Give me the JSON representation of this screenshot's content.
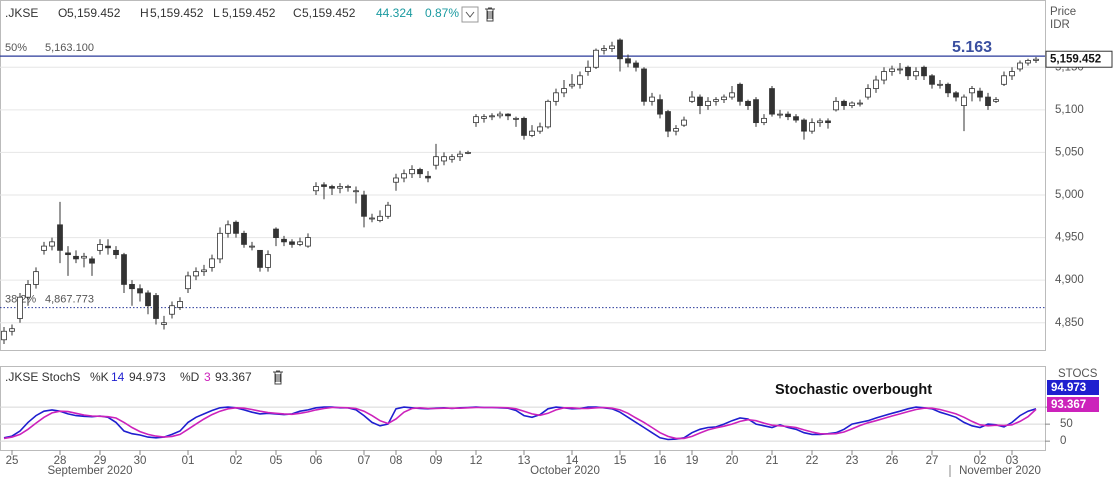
{
  "chart_data": [
    {
      "type": "candlestick",
      "symbol": ".JKSE",
      "header": [
        {
          "label": "O",
          "value": "5,159.452"
        },
        {
          "label": "H",
          "value": "5,159.452"
        },
        {
          "label": "L",
          "value": "5,159.452"
        },
        {
          "label": "C",
          "value": "5,159.452"
        }
      ],
      "change": "44.324",
      "change_pct": "0.87%",
      "axis_label": [
        "Price",
        "IDR"
      ],
      "last_price_label": "5,159.452",
      "annotation": "5.163",
      "levels": [
        {
          "label": "50%",
          "value": 5163.1,
          "value_label": "5,163.100",
          "style": "solid",
          "color": "#2a3a9a"
        },
        {
          "label": "38.2%",
          "value": 4867.773,
          "value_label": "4,867.773",
          "style": "dotted",
          "color": "#2a3a9a"
        }
      ],
      "xlim": [
        -0.5,
        129.5
      ],
      "ylim": [
        4818,
        5229
      ],
      "yticks": [
        {
          "value": 4850,
          "label": "4,850"
        },
        {
          "value": 4900,
          "label": "4,900"
        },
        {
          "value": 4950,
          "label": "4,950"
        },
        {
          "value": 5000,
          "label": "5,000"
        },
        {
          "value": 5050,
          "label": "5,050"
        },
        {
          "value": 5100,
          "label": "5,100"
        },
        {
          "value": 5150,
          "label": "5,150"
        }
      ],
      "up_color": "#ffffff",
      "down_color": "#333333",
      "ohlc": [
        [
          4830,
          4845,
          4825,
          4840
        ],
        [
          4840,
          4848,
          4835,
          4843
        ],
        [
          4855,
          4885,
          4850,
          4880
        ],
        [
          4880,
          4900,
          4870,
          4895
        ],
        [
          4895,
          4915,
          4890,
          4910
        ],
        [
          4935,
          4945,
          4930,
          4940
        ],
        [
          4940,
          4950,
          4935,
          4945
        ],
        [
          4965,
          4992,
          4920,
          4935
        ],
        [
          4932,
          4940,
          4905,
          4930
        ],
        [
          4928,
          4935,
          4920,
          4925
        ],
        [
          4926,
          4932,
          4915,
          4928
        ],
        [
          4925,
          4928,
          4905,
          4920
        ],
        [
          4935,
          4948,
          4930,
          4942
        ],
        [
          4940,
          4948,
          4930,
          4938
        ],
        [
          4935,
          4940,
          4925,
          4930
        ],
        [
          4930,
          4932,
          4885,
          4895
        ],
        [
          4895,
          4900,
          4870,
          4890
        ],
        [
          4890,
          4895,
          4875,
          4885
        ],
        [
          4885,
          4888,
          4860,
          4870
        ],
        [
          4882,
          4885,
          4848,
          4855
        ],
        [
          4848,
          4858,
          4842,
          4850
        ],
        [
          4860,
          4875,
          4855,
          4870
        ],
        [
          4868,
          4880,
          4865,
          4875
        ],
        [
          4890,
          4910,
          4885,
          4905
        ],
        [
          4905,
          4915,
          4900,
          4910
        ],
        [
          4910,
          4918,
          4905,
          4912
        ],
        [
          4915,
          4930,
          4910,
          4925
        ],
        [
          4925,
          4962,
          4920,
          4955
        ],
        [
          4955,
          4970,
          4950,
          4965
        ],
        [
          4968,
          4970,
          4950,
          4955
        ],
        [
          4955,
          4958,
          4938,
          4942
        ],
        [
          4940,
          4945,
          4935,
          4940
        ],
        [
          4935,
          4935,
          4910,
          4915
        ],
        [
          4915,
          4935,
          4910,
          4930
        ],
        [
          4960,
          4962,
          4940,
          4950
        ],
        [
          4948,
          4952,
          4940,
          4945
        ],
        [
          4945,
          4948,
          4938,
          4942
        ],
        [
          4942,
          4950,
          4940,
          4945
        ],
        [
          4940,
          4955,
          4938,
          4950
        ],
        [
          5005,
          5015,
          5000,
          5010
        ],
        [
          5012,
          5015,
          4995,
          5010
        ],
        [
          5010,
          5012,
          5000,
          5008
        ],
        [
          5008,
          5014,
          5002,
          5010
        ],
        [
          5010,
          5012,
          5004,
          5010
        ],
        [
          5005,
          5010,
          4990,
          5005
        ],
        [
          5000,
          5005,
          4962,
          4975
        ],
        [
          4973,
          4978,
          4968,
          4973
        ],
        [
          4970,
          4982,
          4968,
          4975
        ],
        [
          4975,
          4992,
          4972,
          4988
        ],
        [
          5015,
          5025,
          5005,
          5020
        ],
        [
          5020,
          5030,
          5015,
          5025
        ],
        [
          5025,
          5035,
          5020,
          5030
        ],
        [
          5030,
          5032,
          5020,
          5025
        ],
        [
          5022,
          5028,
          5015,
          5020
        ],
        [
          5035,
          5060,
          5030,
          5045
        ],
        [
          5040,
          5050,
          5035,
          5045
        ],
        [
          5042,
          5048,
          5038,
          5045
        ],
        [
          5045,
          5052,
          5040,
          5048
        ],
        [
          5050,
          5052,
          5048,
          5050
        ],
        [
          5085,
          5095,
          5080,
          5092
        ],
        [
          5090,
          5095,
          5085,
          5092
        ],
        [
          5092,
          5096,
          5088,
          5093
        ],
        [
          5093,
          5098,
          5090,
          5095
        ],
        [
          5095,
          5096,
          5088,
          5093
        ],
        [
          5090,
          5092,
          5080,
          5090
        ],
        [
          5090,
          5092,
          5065,
          5070
        ],
        [
          5070,
          5082,
          5068,
          5075
        ],
        [
          5075,
          5085,
          5072,
          5080
        ],
        [
          5080,
          5112,
          5078,
          5110
        ],
        [
          5110,
          5125,
          5105,
          5120
        ],
        [
          5120,
          5135,
          5115,
          5125
        ],
        [
          5128,
          5142,
          5125,
          5130
        ],
        [
          5130,
          5145,
          5125,
          5140
        ],
        [
          5145,
          5158,
          5140,
          5150
        ],
        [
          5150,
          5172,
          5148,
          5170
        ],
        [
          5170,
          5176,
          5165,
          5172
        ],
        [
          5172,
          5180,
          5168,
          5175
        ],
        [
          5182,
          5184,
          5145,
          5160
        ],
        [
          5160,
          5165,
          5150,
          5155
        ],
        [
          5155,
          5158,
          5145,
          5150
        ],
        [
          5148,
          5150,
          5105,
          5110
        ],
        [
          5110,
          5120,
          5105,
          5115
        ],
        [
          5112,
          5118,
          5090,
          5095
        ],
        [
          5098,
          5100,
          5068,
          5075
        ],
        [
          5075,
          5082,
          5070,
          5078
        ],
        [
          5082,
          5092,
          5080,
          5088
        ],
        [
          5110,
          5122,
          5108,
          5115
        ],
        [
          5115,
          5118,
          5095,
          5105
        ],
        [
          5105,
          5115,
          5100,
          5110
        ],
        [
          5110,
          5115,
          5105,
          5112
        ],
        [
          5112,
          5118,
          5108,
          5115
        ],
        [
          5115,
          5128,
          5112,
          5120
        ],
        [
          5130,
          5132,
          5105,
          5110
        ],
        [
          5110,
          5112,
          5100,
          5105
        ],
        [
          5112,
          5115,
          5080,
          5085
        ],
        [
          5085,
          5095,
          5082,
          5090
        ],
        [
          5125,
          5128,
          5092,
          5095
        ],
        [
          5095,
          5100,
          5090,
          5095
        ],
        [
          5095,
          5098,
          5088,
          5092
        ],
        [
          5092,
          5095,
          5085,
          5088
        ],
        [
          5088,
          5090,
          5065,
          5075
        ],
        [
          5075,
          5090,
          5072,
          5085
        ],
        [
          5085,
          5090,
          5080,
          5087
        ],
        [
          5087,
          5090,
          5078,
          5085
        ],
        [
          5100,
          5115,
          5098,
          5110
        ],
        [
          5110,
          5112,
          5100,
          5105
        ],
        [
          5105,
          5110,
          5102,
          5108
        ],
        [
          5108,
          5112,
          5104,
          5108
        ],
        [
          5115,
          5130,
          5112,
          5125
        ],
        [
          5125,
          5140,
          5120,
          5135
        ],
        [
          5135,
          5150,
          5130,
          5145
        ],
        [
          5145,
          5152,
          5140,
          5148
        ],
        [
          5148,
          5155,
          5142,
          5148
        ],
        [
          5150,
          5152,
          5135,
          5140
        ],
        [
          5140,
          5150,
          5135,
          5145
        ],
        [
          5150,
          5152,
          5135,
          5140
        ],
        [
          5140,
          5142,
          5125,
          5130
        ],
        [
          5130,
          5135,
          5125,
          5130
        ],
        [
          5130,
          5132,
          5115,
          5120
        ],
        [
          5120,
          5122,
          5110,
          5115
        ],
        [
          5105,
          5118,
          5075,
          5115
        ],
        [
          5120,
          5128,
          5110,
          5125
        ],
        [
          5122,
          5126,
          5110,
          5115
        ],
        [
          5115,
          5120,
          5100,
          5105
        ],
        [
          5110,
          5115,
          5108,
          5112
        ],
        [
          5130,
          5145,
          5128,
          5140
        ],
        [
          5140,
          5150,
          5135,
          5145
        ],
        [
          5148,
          5158,
          5145,
          5155
        ],
        [
          5155,
          5160,
          5152,
          5158
        ],
        [
          5158,
          5162,
          5155,
          5159.452
        ]
      ]
    },
    {
      "type": "line",
      "title": ".JKSE StochS",
      "axis_title": "STOCS",
      "annotation": "Stochastic overbought",
      "xlim": [
        -0.5,
        129.5
      ],
      "ylim": [
        -26,
        218
      ],
      "yticks": [
        0,
        50,
        100
      ],
      "xticks": [
        {
          "value": 1,
          "label": "25"
        },
        {
          "value": 7,
          "label": "28"
        },
        {
          "value": 12,
          "label": "29"
        },
        {
          "value": 17,
          "label": "30"
        },
        {
          "value": 23,
          "label": "01"
        },
        {
          "value": 29,
          "label": "02"
        },
        {
          "value": 34,
          "label": "05"
        },
        {
          "value": 39,
          "label": "06"
        },
        {
          "value": 45,
          "label": "07"
        },
        {
          "value": 49,
          "label": "08"
        },
        {
          "value": 54,
          "label": "09"
        },
        {
          "value": 59,
          "label": "12"
        },
        {
          "value": 65,
          "label": "13"
        },
        {
          "value": 71,
          "label": "14"
        },
        {
          "value": 77,
          "label": "15"
        },
        {
          "value": 82,
          "label": "16"
        },
        {
          "value": 86,
          "label": "19"
        },
        {
          "value": 91,
          "label": "20"
        },
        {
          "value": 96,
          "label": "21"
        },
        {
          "value": 101,
          "label": "22"
        },
        {
          "value": 106,
          "label": "23"
        },
        {
          "value": 111,
          "label": "26"
        },
        {
          "value": 116,
          "label": "27"
        },
        {
          "value": 122,
          "label": "02"
        },
        {
          "value": 126,
          "label": "03"
        }
      ],
      "months": [
        "September 2020",
        "October 2020",
        "November 2020"
      ],
      "series": [
        {
          "name": "%K",
          "param": 14,
          "color": "#1f1fcf",
          "values": [
            10,
            15,
            30,
            55,
            75,
            88,
            92,
            88,
            80,
            75,
            73,
            72,
            74,
            70,
            55,
            30,
            22,
            18,
            12,
            10,
            12,
            20,
            30,
            55,
            70,
            80,
            90,
            98,
            100,
            98,
            92,
            85,
            80,
            82,
            80,
            78,
            80,
            88,
            92,
            98,
            100,
            100,
            98,
            98,
            92,
            75,
            55,
            45,
            50,
            95,
            100,
            98,
            96,
            95,
            97,
            98,
            96,
            98,
            99,
            100,
            99,
            99,
            98,
            97,
            90,
            75,
            70,
            78,
            95,
            100,
            98,
            95,
            96,
            100,
            100,
            98,
            95,
            85,
            70,
            55,
            40,
            25,
            10,
            5,
            6,
            10,
            25,
            35,
            40,
            42,
            50,
            60,
            68,
            65,
            50,
            45,
            40,
            48,
            40,
            35,
            25,
            20,
            20,
            22,
            25,
            35,
            50,
            55,
            60,
            68,
            75,
            82,
            88,
            95,
            100,
            98,
            95,
            85,
            78,
            70,
            55,
            45,
            40,
            50,
            48,
            42,
            55,
            75,
            88,
            94.973
          ]
        },
        {
          "name": "%D",
          "param": 3,
          "color": "#cc22bb",
          "values": [
            8,
            12,
            20,
            35,
            53,
            70,
            83,
            88,
            87,
            82,
            77,
            74,
            73,
            72,
            68,
            55,
            40,
            28,
            20,
            15,
            12,
            14,
            20,
            35,
            50,
            65,
            78,
            88,
            95,
            98,
            97,
            93,
            88,
            84,
            82,
            80,
            79,
            82,
            86,
            92,
            96,
            99,
            99,
            98,
            96,
            88,
            75,
            60,
            52,
            65,
            85,
            96,
            98,
            96,
            96,
            97,
            97,
            97,
            98,
            99,
            99,
            99,
            99,
            98,
            95,
            88,
            80,
            76,
            82,
            92,
            98,
            98,
            96,
            96,
            98,
            99,
            97,
            92,
            82,
            68,
            55,
            40,
            25,
            14,
            8,
            8,
            14,
            24,
            33,
            39,
            44,
            50,
            58,
            63,
            60,
            53,
            47,
            45,
            43,
            40,
            33,
            27,
            22,
            21,
            22,
            27,
            36,
            46,
            54,
            60,
            67,
            74,
            80,
            87,
            93,
            97,
            97,
            93,
            87,
            80,
            70,
            58,
            48,
            45,
            47,
            46,
            48,
            58,
            72,
            93.367
          ]
        }
      ]
    }
  ]
}
